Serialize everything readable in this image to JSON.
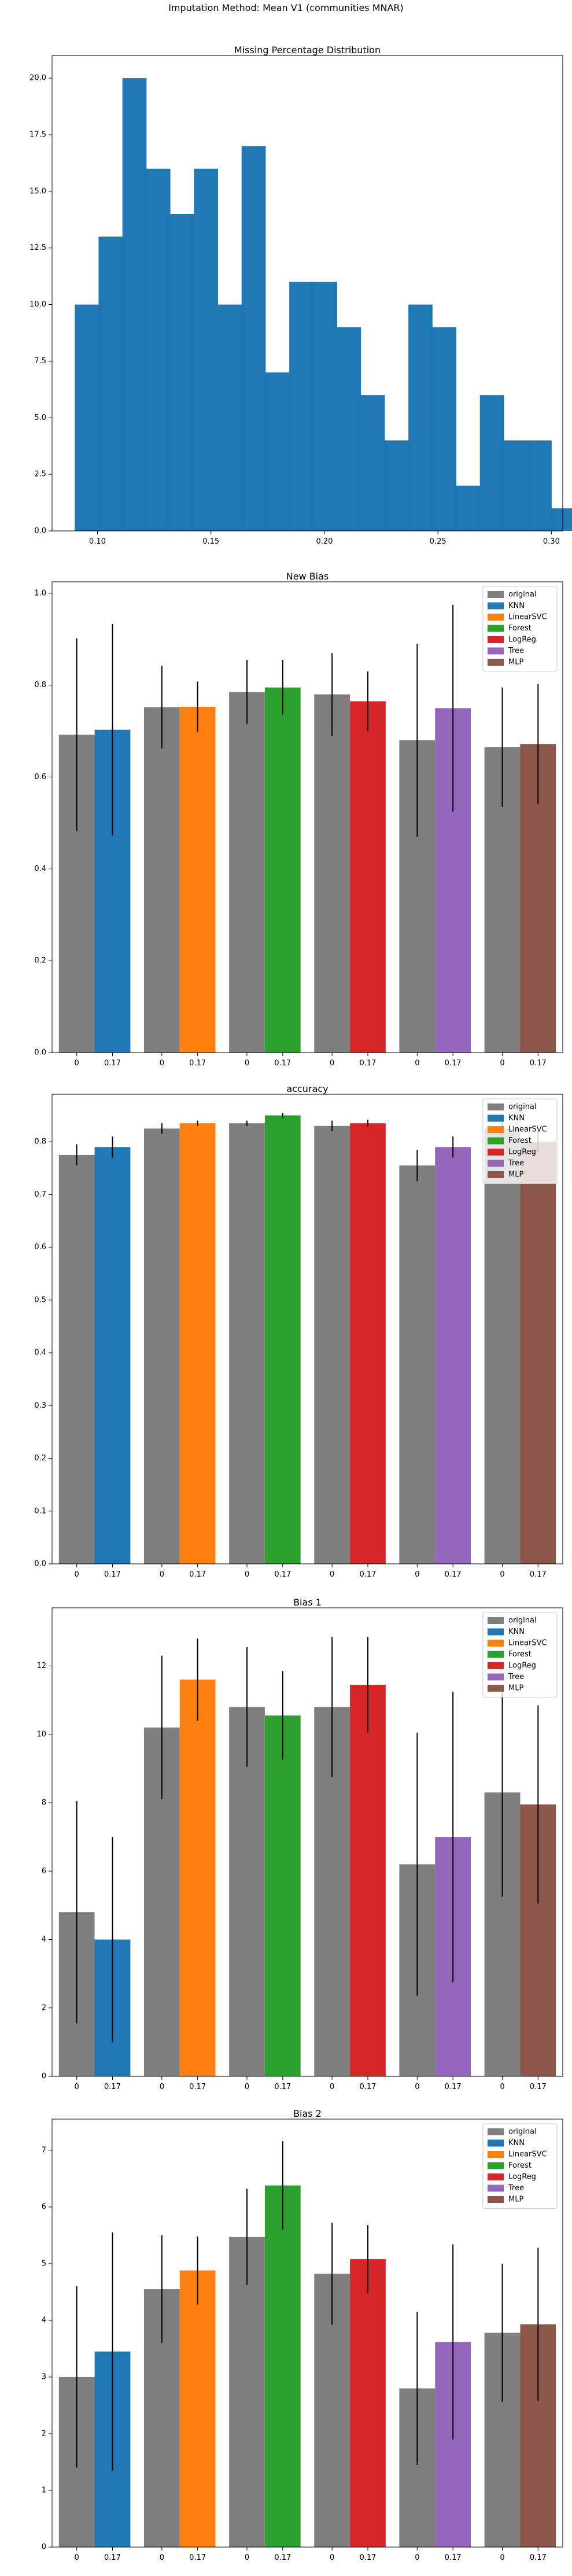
{
  "suptitle": "Imputation Method: Mean V1 (communities MNAR)",
  "colors": {
    "original": "#7f7f7f",
    "KNN": "#1f77b4",
    "LinearSVC": "#ff7f0e",
    "Forest": "#2ca02c",
    "LogReg": "#d62728",
    "Tree": "#9467bd",
    "MLP": "#8c564b",
    "hist": "#1f77b4"
  },
  "chart_data": [
    {
      "type": "bar",
      "subtype": "histogram",
      "title": "Missing Percentage Distribution",
      "bin_start": 0.09,
      "bin_width": 0.0105,
      "counts": [
        10,
        13,
        20,
        16,
        14,
        16,
        10,
        17,
        7,
        11,
        11,
        9,
        6,
        4,
        10,
        9,
        2,
        6,
        4,
        4,
        1
      ],
      "xlim": [
        0.08,
        0.305
      ],
      "ylim": [
        0,
        21
      ],
      "xticks": [
        0.1,
        0.15,
        0.2,
        0.25,
        0.3
      ],
      "xtick_labels": [
        "0.10",
        "0.15",
        "0.20",
        "0.25",
        "0.30"
      ],
      "yticks": [
        0,
        2.5,
        5,
        7.5,
        10,
        12.5,
        15,
        17.5,
        20
      ],
      "ytick_labels": [
        "0.0",
        "2.5",
        "5.0",
        "7.5",
        "10.0",
        "12.5",
        "15.0",
        "17.5",
        "20.0"
      ]
    },
    {
      "type": "bar",
      "title": "New Bias",
      "tick_labels": [
        "0",
        "0.17"
      ],
      "legend": [
        "original",
        "KNN",
        "LinearSVC",
        "Forest",
        "LogReg",
        "Tree",
        "MLP"
      ],
      "legend_position": "top-right",
      "ylim": [
        0,
        1.025
      ],
      "yticks": [
        0,
        0.2,
        0.4,
        0.6,
        0.8,
        1.0
      ],
      "ytick_labels": [
        "0.0",
        "0.2",
        "0.4",
        "0.6",
        "0.8",
        "1.0"
      ],
      "groups": [
        {
          "model": "KNN",
          "original": 0.692,
          "original_err": 0.21,
          "imputed": 0.703,
          "imputed_err": 0.23
        },
        {
          "model": "LinearSVC",
          "original": 0.752,
          "original_err": 0.09,
          "imputed": 0.753,
          "imputed_err": 0.055
        },
        {
          "model": "Forest",
          "original": 0.785,
          "original_err": 0.07,
          "imputed": 0.795,
          "imputed_err": 0.06
        },
        {
          "model": "LogReg",
          "original": 0.78,
          "original_err": 0.09,
          "imputed": 0.765,
          "imputed_err": 0.065
        },
        {
          "model": "Tree",
          "original": 0.68,
          "original_err": 0.21,
          "imputed": 0.75,
          "imputed_err": 0.225
        },
        {
          "model": "MLP",
          "original": 0.665,
          "original_err": 0.13,
          "imputed": 0.672,
          "imputed_err": 0.13
        }
      ]
    },
    {
      "type": "bar",
      "title": "accuracy",
      "tick_labels": [
        "0",
        "0.17"
      ],
      "legend": [
        "original",
        "KNN",
        "LinearSVC",
        "Forest",
        "LogReg",
        "Tree",
        "MLP"
      ],
      "legend_position": "top-right",
      "ylim": [
        0,
        0.89
      ],
      "yticks": [
        0,
        0.1,
        0.2,
        0.3,
        0.4,
        0.5,
        0.6,
        0.7,
        0.8
      ],
      "ytick_labels": [
        "0.0",
        "0.1",
        "0.2",
        "0.3",
        "0.4",
        "0.5",
        "0.6",
        "0.7",
        "0.8"
      ],
      "groups": [
        {
          "model": "KNN",
          "original": 0.775,
          "original_err": 0.02,
          "imputed": 0.79,
          "imputed_err": 0.02
        },
        {
          "model": "LinearSVC",
          "original": 0.825,
          "original_err": 0.01,
          "imputed": 0.835,
          "imputed_err": 0.005
        },
        {
          "model": "Forest",
          "original": 0.835,
          "original_err": 0.005,
          "imputed": 0.85,
          "imputed_err": 0.005
        },
        {
          "model": "LogReg",
          "original": 0.83,
          "original_err": 0.01,
          "imputed": 0.835,
          "imputed_err": 0.007
        },
        {
          "model": "Tree",
          "original": 0.755,
          "original_err": 0.03,
          "imputed": 0.79,
          "imputed_err": 0.02
        },
        {
          "model": "MLP",
          "original": 0.825,
          "original_err": 0.02,
          "imputed": 0.8,
          "imputed_err": 0.02
        }
      ]
    },
    {
      "type": "bar",
      "title": "Bias 1",
      "tick_labels": [
        "0",
        "0.17"
      ],
      "legend": [
        "original",
        "KNN",
        "LinearSVC",
        "Forest",
        "LogReg",
        "Tree",
        "MLP"
      ],
      "legend_position": "top-right",
      "ylim": [
        0,
        13.7
      ],
      "yticks": [
        0,
        2,
        4,
        6,
        8,
        10,
        12
      ],
      "ytick_labels": [
        "0",
        "2",
        "4",
        "6",
        "8",
        "10",
        "12"
      ],
      "groups": [
        {
          "model": "KNN",
          "original": 4.8,
          "original_err": 3.25,
          "imputed": 4.0,
          "imputed_err": 3.0
        },
        {
          "model": "LinearSVC",
          "original": 10.2,
          "original_err": 2.1,
          "imputed": 11.6,
          "imputed_err": 1.2
        },
        {
          "model": "Forest",
          "original": 10.8,
          "original_err": 1.75,
          "imputed": 10.55,
          "imputed_err": 1.3
        },
        {
          "model": "LogReg",
          "original": 10.8,
          "original_err": 2.05,
          "imputed": 11.45,
          "imputed_err": 1.4
        },
        {
          "model": "Tree",
          "original": 6.2,
          "original_err": 3.85,
          "imputed": 7.0,
          "imputed_err": 4.25
        },
        {
          "model": "MLP",
          "original": 8.3,
          "original_err": 3.05,
          "imputed": 7.95,
          "imputed_err": 2.9
        }
      ]
    },
    {
      "type": "bar",
      "title": "Bias 2",
      "tick_labels": [
        "0",
        "0.17"
      ],
      "legend": [
        "original",
        "KNN",
        "LinearSVC",
        "Forest",
        "LogReg",
        "Tree",
        "MLP"
      ],
      "legend_position": "top-right",
      "ylim": [
        0,
        7.55
      ],
      "yticks": [
        0,
        1,
        2,
        3,
        4,
        5,
        6,
        7
      ],
      "ytick_labels": [
        "0",
        "1",
        "2",
        "3",
        "4",
        "5",
        "6",
        "7"
      ],
      "groups": [
        {
          "model": "KNN",
          "original": 3.0,
          "original_err": 1.6,
          "imputed": 3.45,
          "imputed_err": 2.1
        },
        {
          "model": "LinearSVC",
          "original": 4.55,
          "original_err": 0.95,
          "imputed": 4.88,
          "imputed_err": 0.6
        },
        {
          "model": "Forest",
          "original": 5.47,
          "original_err": 0.85,
          "imputed": 6.38,
          "imputed_err": 0.78
        },
        {
          "model": "LogReg",
          "original": 4.82,
          "original_err": 0.9,
          "imputed": 5.08,
          "imputed_err": 0.6
        },
        {
          "model": "Tree",
          "original": 2.8,
          "original_err": 1.35,
          "imputed": 3.62,
          "imputed_err": 1.72
        },
        {
          "model": "MLP",
          "original": 3.78,
          "original_err": 1.22,
          "imputed": 3.93,
          "imputed_err": 1.35
        }
      ]
    }
  ]
}
